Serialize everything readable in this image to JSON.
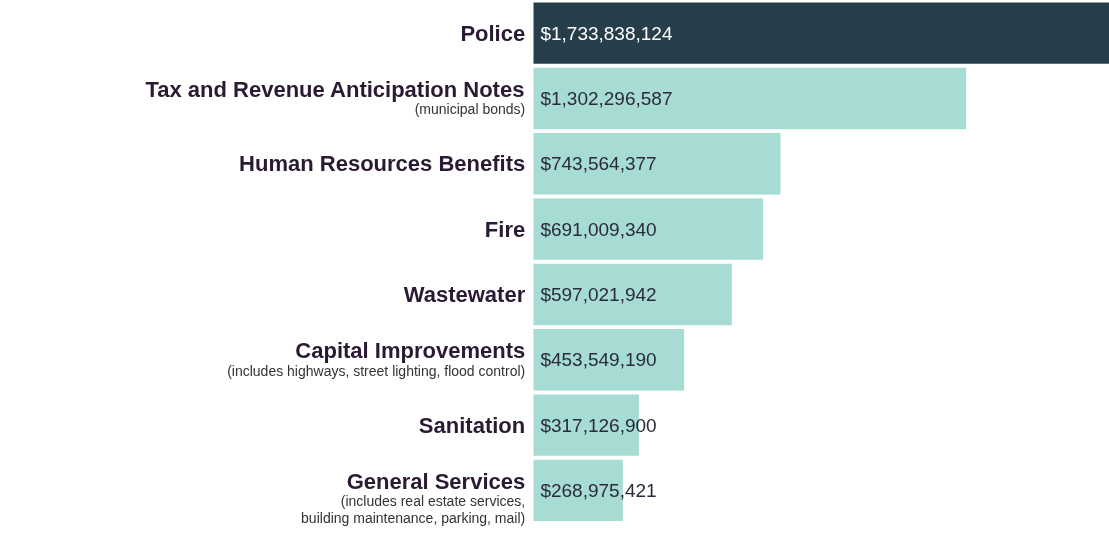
{
  "chart_data": {
    "type": "bar",
    "orientation": "horizontal",
    "categories": [
      "Police",
      "Tax and Revenue Anticipation Notes\n(municipal bonds)",
      "Human Resources Benefits",
      "Fire",
      "Wastewater",
      "Capital Improvements\n(includes highways, street lighting, flood control)",
      "Sanitation",
      "General Services\n(includes real estate services,\nbuilding maintenance, parking, mail)"
    ],
    "values": [
      1733838124,
      1302296587,
      743564377,
      691009340,
      597021942,
      453549190,
      317126900,
      268975421
    ],
    "value_labels": [
      "$1,733,838,124",
      "$1,302,296,587",
      "$743,564,377",
      "$691,009,340",
      "$597,021,942",
      "$453,549,190",
      "$317,126,900",
      "$268,975,421"
    ],
    "colors": [
      "#263d4a",
      "#a6dcd3",
      "#a6dcd3",
      "#a6dcd3",
      "#a6dcd3",
      "#a6dcd3",
      "#a6dcd3",
      "#a6dcd3"
    ]
  }
}
